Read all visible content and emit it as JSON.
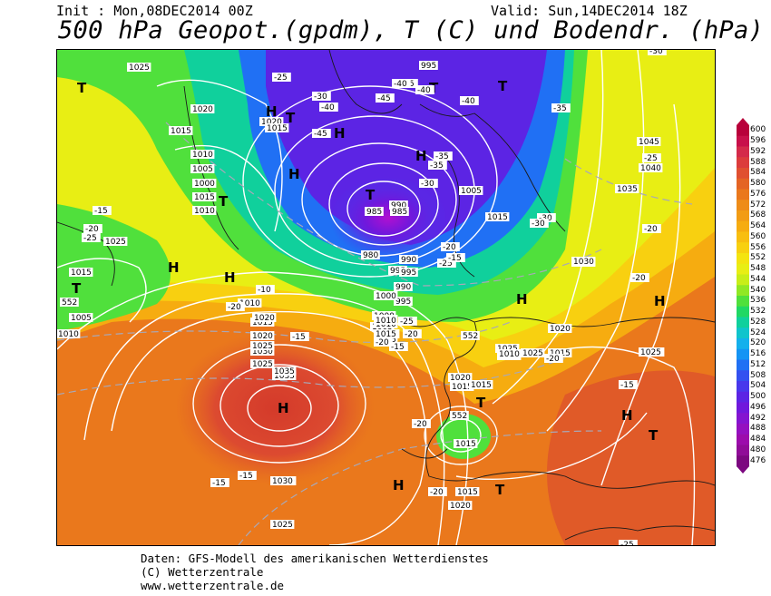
{
  "header": {
    "init": "Init : Mon,08DEC2014 00Z",
    "valid": "Valid: Sun,14DEC2014 18Z",
    "title": "500 hPa Geopot.(gpdm), T (C) und Bodendr. (hPa)"
  },
  "legend": {
    "ticks": [
      "600",
      "596",
      "592",
      "588",
      "584",
      "580",
      "576",
      "572",
      "568",
      "564",
      "560",
      "556",
      "552",
      "548",
      "544",
      "540",
      "536",
      "532",
      "528",
      "524",
      "520",
      "516",
      "512",
      "508",
      "504",
      "500",
      "496",
      "492",
      "488",
      "484",
      "480",
      "476"
    ],
    "colors": [
      "#b8003a",
      "#c8104a",
      "#d42a4a",
      "#dc3c3c",
      "#e05030",
      "#e46424",
      "#ea781c",
      "#ee8c18",
      "#f29c14",
      "#f6ac10",
      "#f8be10",
      "#f8d010",
      "#f4e410",
      "#e8ee14",
      "#c8ee18",
      "#90e824",
      "#50e03c",
      "#20d864",
      "#10d09c",
      "#10c4cc",
      "#14b0ec",
      "#1494f4",
      "#2070f4",
      "#3450f0",
      "#4838ec",
      "#5c24e4",
      "#7018dc",
      "#8414d0",
      "#9410c0",
      "#9c0cac",
      "#900c98",
      "#7c0880"
    ]
  },
  "map": {
    "pressure_labels": [
      "1025",
      "1020",
      "1015",
      "1010",
      "1005",
      "1000",
      "1015",
      "1010",
      "1005",
      "1015",
      "1025",
      "1020",
      "1015",
      "995",
      "985",
      "990",
      "995",
      "1005",
      "1015",
      "1030",
      "1025",
      "1020",
      "1015",
      "1010",
      "1005",
      "1000",
      "995",
      "990",
      "985",
      "980",
      "1035",
      "1030",
      "1025",
      "1020",
      "1015",
      "1010",
      "1005",
      "1000",
      "995",
      "990",
      "1015",
      "1015",
      "1020",
      "1025",
      "1045",
      "1040",
      "1035",
      "1030",
      "1025",
      "1020",
      "1015",
      "1030",
      "1025",
      "1020",
      "1015",
      "1010",
      "1035",
      "1030",
      "1025",
      "1020",
      "1015",
      "1010",
      "1015",
      "1030",
      "1025",
      "1010"
    ],
    "temp_labels": [
      "-25",
      "-30",
      "-35",
      "-40",
      "-45",
      "-40",
      "-45",
      "-40",
      "-35",
      "-30",
      "-25",
      "-20",
      "-15",
      "-35",
      "-30",
      "-25",
      "-20",
      "-15",
      "-10",
      "-20",
      "-25",
      "-20",
      "-15",
      "-20",
      "-25",
      "-20",
      "-15",
      "-20",
      "-15",
      "-20",
      "-15",
      "-30",
      "-35",
      "-40",
      "-20",
      "-25",
      "-30",
      "-15",
      "-20",
      "-25"
    ],
    "geopot_labels": [
      "552",
      "552",
      "552"
    ],
    "high_symbol": "H",
    "low_symbol": "T"
  },
  "footer": {
    "line1": "Daten: GFS-Modell des amerikanischen Wetterdienstes",
    "line2": "(C) Wetterzentrale",
    "line3": "www.wetterzentrale.de"
  }
}
